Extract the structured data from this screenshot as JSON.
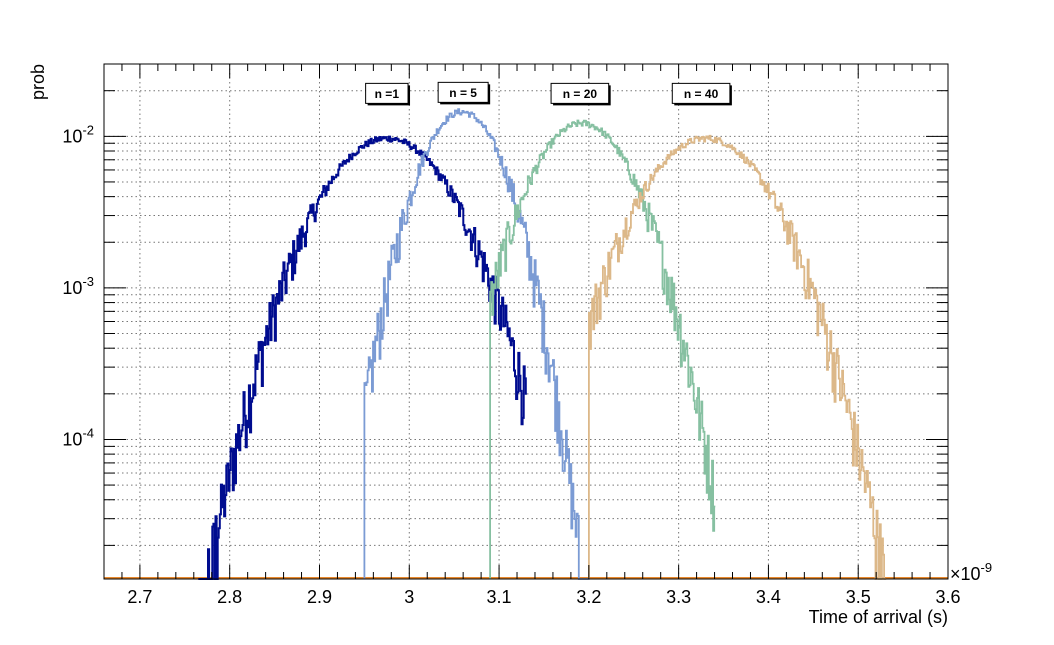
{
  "chart_data": {
    "type": "line",
    "title": "",
    "xlabel": "Time of arrival (s)",
    "ylabel": "prob",
    "x_multiplier_label": "×10",
    "x_multiplier_exp": "-9",
    "xlim": [
      2.66,
      3.6
    ],
    "ylim": [
      1.2e-05,
      0.03
    ],
    "yscale": "log",
    "grid": true,
    "x_ticks": [
      {
        "value": 2.7,
        "label": "2.7"
      },
      {
        "value": 2.8,
        "label": "2.8"
      },
      {
        "value": 2.9,
        "label": "2.9"
      },
      {
        "value": 3.0,
        "label": "3"
      },
      {
        "value": 3.1,
        "label": "3.1"
      },
      {
        "value": 3.2,
        "label": "3.2"
      },
      {
        "value": 3.3,
        "label": "3.3"
      },
      {
        "value": 3.4,
        "label": "3.4"
      },
      {
        "value": 3.5,
        "label": "3.5"
      },
      {
        "value": 3.6,
        "label": "3.6"
      }
    ],
    "y_ticks": [
      {
        "value": 0.0001,
        "base": "10",
        "exp": "-4"
      },
      {
        "value": 0.001,
        "base": "10",
        "exp": "-3"
      },
      {
        "value": 0.01,
        "base": "10",
        "exp": "-2"
      }
    ],
    "series": [
      {
        "color": "#000c8f",
        "mean": 2.975,
        "sigma": 0.055,
        "peak": 0.0097,
        "start": 2.765,
        "end": 3.13
      },
      {
        "color": "#7b9bd4",
        "mean": 3.058,
        "sigma": 0.036,
        "peak": 0.0145,
        "start": 2.95,
        "end": 3.2
      },
      {
        "color": "#86c0a1",
        "mean": 3.192,
        "sigma": 0.044,
        "peak": 0.0122,
        "start": 3.09,
        "end": 3.34
      },
      {
        "color": "#dcb889",
        "mean": 3.33,
        "sigma": 0.055,
        "peak": 0.0097,
        "start": 3.2,
        "end": 3.53
      }
    ],
    "baseline_color": "#e8892d",
    "annotations": [
      {
        "text": "n =1",
        "x": 2.975,
        "y": 0.0192
      },
      {
        "text": "n = 5",
        "x": 3.06,
        "y": 0.0195
      },
      {
        "text": "n = 20",
        "x": 3.19,
        "y": 0.0192
      },
      {
        "text": "n = 40",
        "x": 3.325,
        "y": 0.0192
      }
    ]
  }
}
